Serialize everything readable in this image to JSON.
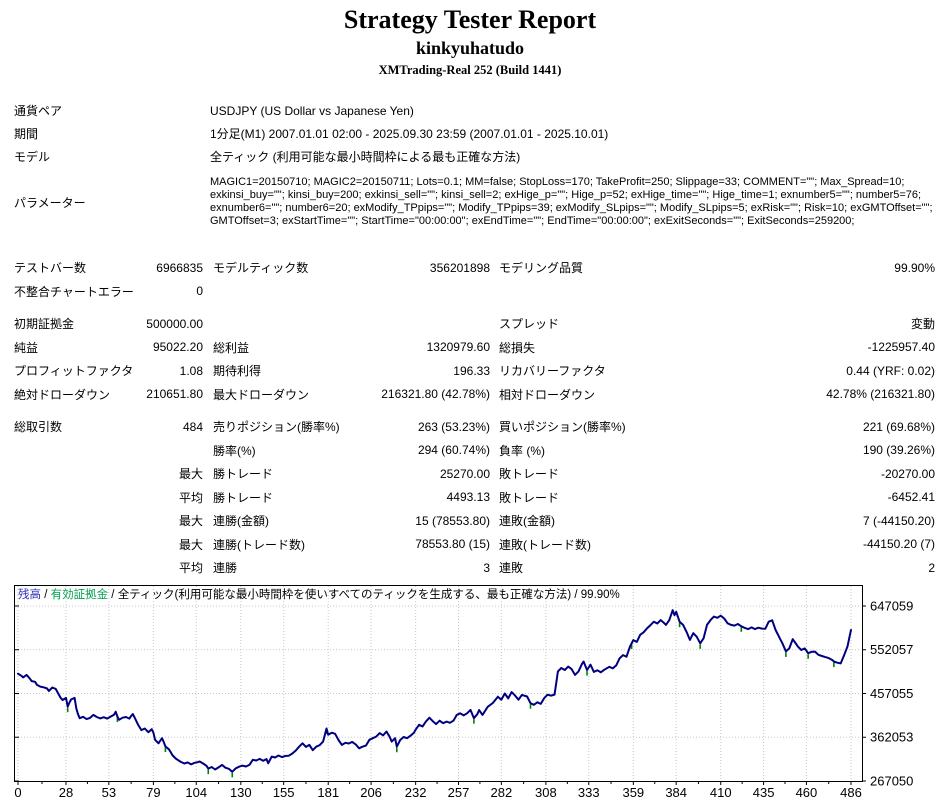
{
  "header": {
    "title": "Strategy Tester Report",
    "expert_name": "kinkyuhatudo",
    "server": "XMTrading-Real 252 (Build 1441)"
  },
  "info": {
    "rows": [
      {
        "label": "通貨ペア",
        "value": "USDJPY (US Dollar vs Japanese Yen)"
      },
      {
        "label": "期間",
        "value": "1分足(M1) 2007.01.01 02:00 - 2025.09.30 23:59 (2007.01.01 - 2025.10.01)"
      },
      {
        "label": "モデル",
        "value": "全ティック (利用可能な最小時間枠による最も正確な方法)"
      },
      {
        "label": "パラメーター",
        "value": "MAGIC1=20150710; MAGIC2=20150711; Lots=0.1; MM=false; StopLoss=170; TakeProfit=250; Slippage=33; COMMENT=\"\"; Max_Spread=10; exkinsi_buy=\"\"; kinsi_buy=200; exkinsi_sell=\"\"; kinsi_sell=2; exHige_p=\"\"; Hige_p=52; exHige_time=\"\"; Hige_time=1; exnumber5=\"\"; number5=76; exnumber6=\"\"; number6=20; exModify_TPpips=\"\"; Modify_TPpips=39; exModify_SLpips=\"\"; Modify_SLpips=5; exRisk=\"\"; Risk=10; exGMTOffset=\"\"; GMTOffset=3; exStartTime=\"\"; StartTime=\"00:00:00\"; exEndTime=\"\"; EndTime=\"00:00:00\"; exExitSeconds=\"\"; ExitSeconds=259200;"
      }
    ]
  },
  "stats": {
    "rows": [
      {
        "c1l": "テストバー数",
        "c1v": "6966835",
        "c2l": "モデルティック数",
        "c2v": "356201898",
        "c3l": "モデリング品質",
        "c3v": "99.90%",
        "gap": false
      },
      {
        "c1l": "不整合チャートエラー",
        "c1v": "0",
        "c2l": "",
        "c2v": "",
        "c3l": "",
        "c3v": "",
        "gap": false
      },
      {
        "c1l": "初期証拠金",
        "c1v": "500000.00",
        "c2l": "",
        "c2v": "",
        "c3l": "スプレッド",
        "c3v": "変動",
        "gap": true
      },
      {
        "c1l": "純益",
        "c1v": "95022.20",
        "c2l": "総利益",
        "c2v": "1320979.60",
        "c3l": "総損失",
        "c3v": "-1225957.40",
        "gap": false
      },
      {
        "c1l": "プロフィットファクタ",
        "c1v": "1.08",
        "c2l": "期待利得",
        "c2v": "196.33",
        "c3l": "リカバリーファクタ",
        "c3v": "0.44 (YRF: 0.02)",
        "gap": false
      },
      {
        "c1l": "絶対ドローダウン",
        "c1v": "210651.80",
        "c2l": "最大ドローダウン",
        "c2v": "216321.80 (42.78%)",
        "c3l": "相対ドローダウン",
        "c3v": "42.78% (216321.80)",
        "gap": false
      },
      {
        "c1l": "総取引数",
        "c1v": "484",
        "c2l": "売りポジション(勝率%)",
        "c2v": "263 (53.23%)",
        "c3l": "買いポジション(勝率%)",
        "c3v": "221 (69.68%)",
        "gap": true
      },
      {
        "c1l": "",
        "c1v": "",
        "c2l": "勝率(%)",
        "c2v": "294 (60.74%)",
        "c3l": "負率 (%)",
        "c3v": "190 (39.26%)",
        "gap": false
      },
      {
        "c1l": "",
        "c1v": "最大",
        "c2l": "勝トレード",
        "c2v": "25270.00",
        "c3l": "敗トレード",
        "c3v": "-20270.00",
        "gap": false
      },
      {
        "c1l": "",
        "c1v": "平均",
        "c2l": "勝トレード",
        "c2v": "4493.13",
        "c3l": "敗トレード",
        "c3v": "-6452.41",
        "gap": false
      },
      {
        "c1l": "",
        "c1v": "最大",
        "c2l": "連勝(金額)",
        "c2v": "15 (78553.80)",
        "c3l": "連敗(金額)",
        "c3v": "7 (-44150.20)",
        "gap": false
      },
      {
        "c1l": "",
        "c1v": "最大",
        "c2l": "連勝(トレード数)",
        "c2v": "78553.80 (15)",
        "c3l": "連敗(トレード数)",
        "c3v": "-44150.20 (7)",
        "gap": false
      },
      {
        "c1l": "",
        "c1v": "平均",
        "c2l": "連勝",
        "c2v": "3",
        "c3l": "連敗",
        "c3v": "2",
        "gap": false
      }
    ]
  },
  "chart_data": {
    "type": "line",
    "legend": {
      "balance_label": "残高",
      "equity_label": "有効証拠金",
      "separator": " / ",
      "model_quality": "全ティック(利用可能な最小時間枠を使いすべてのティックを生成する、最も正確な方法) / 99.90%"
    },
    "xlabel": "",
    "ylabel": "",
    "x_range": [
      0,
      486
    ],
    "x_ticks": [
      0,
      28,
      53,
      79,
      104,
      130,
      155,
      181,
      206,
      232,
      257,
      282,
      308,
      333,
      359,
      384,
      410,
      435,
      460,
      486
    ],
    "y_ticks": [
      647059,
      552057,
      457055,
      362053,
      267050
    ],
    "y_gridlines": [
      362053,
      457055,
      552057,
      647059
    ],
    "y_axis": {
      "bottom_value": 267050,
      "bottom_y": 196,
      "grid_top_value": 647059,
      "grid_top_y": 21
    },
    "grid": true,
    "legend_position": "top-left-inside",
    "series": [
      {
        "name": "残高 (balance)",
        "color": "#000080"
      },
      {
        "name": "有効証拠金 (equity)",
        "color": "#008000"
      }
    ],
    "balance_points": [
      [
        0,
        500000
      ],
      [
        2,
        495500
      ],
      [
        3,
        492000
      ],
      [
        5,
        497500
      ],
      [
        7,
        489000
      ],
      [
        8,
        484000
      ],
      [
        10,
        482500
      ],
      [
        11,
        476000
      ],
      [
        13,
        472000
      ],
      [
        15,
        470500
      ],
      [
        17,
        468000
      ],
      [
        18,
        462500
      ],
      [
        20,
        470000
      ],
      [
        22,
        467000
      ],
      [
        24,
        453500
      ],
      [
        25,
        447000
      ],
      [
        26,
        443000
      ],
      [
        28,
        447500
      ],
      [
        29,
        428500
      ],
      [
        30,
        437000
      ],
      [
        31,
        444000
      ],
      [
        33,
        447500
      ],
      [
        34,
        425000
      ],
      [
        35,
        412000
      ],
      [
        36,
        403500
      ],
      [
        38,
        406500
      ],
      [
        40,
        401500
      ],
      [
        42,
        404000
      ],
      [
        44,
        410500
      ],
      [
        46,
        406000
      ],
      [
        48,
        403000
      ],
      [
        50,
        405500
      ],
      [
        52,
        402500
      ],
      [
        54,
        407000
      ],
      [
        56,
        411000
      ],
      [
        57,
        417500
      ],
      [
        58,
        407000
      ],
      [
        59,
        400000
      ],
      [
        61,
        404500
      ],
      [
        63,
        406000
      ],
      [
        65,
        402500
      ],
      [
        66,
        408000
      ],
      [
        67,
        412500
      ],
      [
        68,
        405000
      ],
      [
        70,
        389500
      ],
      [
        72,
        377500
      ],
      [
        74,
        381000
      ],
      [
        76,
        373000
      ],
      [
        78,
        379500
      ],
      [
        79,
        372000
      ],
      [
        80,
        356500
      ],
      [
        82,
        349000
      ],
      [
        84,
        360000
      ],
      [
        85,
        352000
      ],
      [
        86,
        342000
      ],
      [
        88,
        336000
      ],
      [
        89,
        330500
      ],
      [
        90,
        323500
      ],
      [
        92,
        316000
      ],
      [
        94,
        311000
      ],
      [
        95,
        308500
      ],
      [
        97,
        305000
      ],
      [
        99,
        307500
      ],
      [
        101,
        303000
      ],
      [
        103,
        306500
      ],
      [
        105,
        308000
      ],
      [
        106,
        309500
      ],
      [
        108,
        305000
      ],
      [
        110,
        300000
      ],
      [
        111,
        294000
      ],
      [
        113,
        297500
      ],
      [
        115,
        292000
      ],
      [
        117,
        296500
      ],
      [
        119,
        302000
      ],
      [
        121,
        296000
      ],
      [
        123,
        293500
      ],
      [
        125,
        287000
      ],
      [
        127,
        294500
      ],
      [
        129,
        298000
      ],
      [
        131,
        300500
      ],
      [
        133,
        298500
      ],
      [
        135,
        302000
      ],
      [
        137,
        313000
      ],
      [
        139,
        311500
      ],
      [
        141,
        315000
      ],
      [
        143,
        311000
      ],
      [
        145,
        314500
      ],
      [
        146,
        305500
      ],
      [
        148,
        320000
      ],
      [
        150,
        318000
      ],
      [
        152,
        322500
      ],
      [
        154,
        319000
      ],
      [
        156,
        321500
      ],
      [
        158,
        322000
      ],
      [
        160,
        326500
      ],
      [
        162,
        333000
      ],
      [
        164,
        341500
      ],
      [
        166,
        349000
      ],
      [
        168,
        341000
      ],
      [
        170,
        345500
      ],
      [
        172,
        334000
      ],
      [
        174,
        341500
      ],
      [
        176,
        345000
      ],
      [
        178,
        352500
      ],
      [
        180,
        381000
      ],
      [
        181,
        367500
      ],
      [
        183,
        372000
      ],
      [
        185,
        369500
      ],
      [
        187,
        356000
      ],
      [
        189,
        345500
      ],
      [
        191,
        350000
      ],
      [
        193,
        348500
      ],
      [
        195,
        352000
      ],
      [
        197,
        346500
      ],
      [
        199,
        338000
      ],
      [
        201,
        341500
      ],
      [
        203,
        344000
      ],
      [
        205,
        356500
      ],
      [
        207,
        360000
      ],
      [
        209,
        363500
      ],
      [
        211,
        371000
      ],
      [
        213,
        366000
      ],
      [
        215,
        374500
      ],
      [
        217,
        362000
      ],
      [
        218,
        352500
      ],
      [
        220,
        360000
      ],
      [
        221,
        341500
      ],
      [
        223,
        356000
      ],
      [
        225,
        362500
      ],
      [
        227,
        360000
      ],
      [
        229,
        365500
      ],
      [
        231,
        372000
      ],
      [
        232,
        378500
      ],
      [
        234,
        389000
      ],
      [
        236,
        385500
      ],
      [
        238,
        396000
      ],
      [
        240,
        404500
      ],
      [
        242,
        397000
      ],
      [
        244,
        390500
      ],
      [
        246,
        398000
      ],
      [
        248,
        392500
      ],
      [
        250,
        396000
      ],
      [
        252,
        393500
      ],
      [
        254,
        398000
      ],
      [
        256,
        410500
      ],
      [
        258,
        414000
      ],
      [
        260,
        409500
      ],
      [
        262,
        414000
      ],
      [
        264,
        421500
      ],
      [
        266,
        403500
      ],
      [
        268,
        412000
      ],
      [
        269,
        421000
      ],
      [
        271,
        410500
      ],
      [
        274,
        428000
      ],
      [
        277,
        436500
      ],
      [
        280,
        450000
      ],
      [
        282,
        443500
      ],
      [
        284,
        457000
      ],
      [
        286,
        446500
      ],
      [
        288,
        460000
      ],
      [
        290,
        452500
      ],
      [
        292,
        443500
      ],
      [
        294,
        454000
      ],
      [
        297,
        450500
      ],
      [
        299,
        436000
      ],
      [
        301,
        432500
      ],
      [
        303,
        438000
      ],
      [
        305,
        434500
      ],
      [
        307,
        447000
      ],
      [
        309,
        454500
      ],
      [
        311,
        452500
      ],
      [
        313,
        454500
      ],
      [
        314,
        479000
      ],
      [
        315,
        505000
      ],
      [
        317,
        512500
      ],
      [
        319,
        508000
      ],
      [
        321,
        515500
      ],
      [
        323,
        510000
      ],
      [
        325,
        497500
      ],
      [
        327,
        505000
      ],
      [
        329,
        521000
      ],
      [
        330,
        526500
      ],
      [
        332,
        508000
      ],
      [
        334,
        519500
      ],
      [
        336,
        504000
      ],
      [
        338,
        507500
      ],
      [
        340,
        503000
      ],
      [
        342,
        508500
      ],
      [
        345,
        515000
      ],
      [
        347,
        511500
      ],
      [
        349,
        518000
      ],
      [
        351,
        533500
      ],
      [
        353,
        540500
      ],
      [
        355,
        537000
      ],
      [
        357,
        558500
      ],
      [
        359,
        573000
      ],
      [
        361,
        569000
      ],
      [
        363,
        584500
      ],
      [
        365,
        590000
      ],
      [
        367,
        598500
      ],
      [
        369,
        605500
      ],
      [
        371,
        613000
      ],
      [
        373,
        609000
      ],
      [
        375,
        616500
      ],
      [
        377,
        610000
      ],
      [
        378,
        606000
      ],
      [
        380,
        616500
      ],
      [
        382,
        638000
      ],
      [
        383,
        627000
      ],
      [
        384,
        634500
      ],
      [
        386,
        613000
      ],
      [
        388,
        606500
      ],
      [
        390,
        591000
      ],
      [
        392,
        573500
      ],
      [
        394,
        588000
      ],
      [
        396,
        580500
      ],
      [
        398,
        566000
      ],
      [
        400,
        577000
      ],
      [
        402,
        606000
      ],
      [
        404,
        616500
      ],
      [
        406,
        624000
      ],
      [
        408,
        621500
      ],
      [
        410,
        626000
      ],
      [
        412,
        620000
      ],
      [
        414,
        609500
      ],
      [
        416,
        606000
      ],
      [
        418,
        604500
      ],
      [
        420,
        608000
      ],
      [
        422,
        603000
      ],
      [
        424,
        599500
      ],
      [
        426,
        597000
      ],
      [
        428,
        600500
      ],
      [
        430,
        597000
      ],
      [
        432,
        600000
      ],
      [
        434,
        598000
      ],
      [
        436,
        597500
      ],
      [
        438,
        613000
      ],
      [
        440,
        616000
      ],
      [
        442,
        595000
      ],
      [
        444,
        580500
      ],
      [
        446,
        566000
      ],
      [
        448,
        548500
      ],
      [
        450,
        555000
      ],
      [
        452,
        575000
      ],
      [
        453,
        570000
      ],
      [
        455,
        559000
      ],
      [
        457,
        551500
      ],
      [
        459,
        555000
      ],
      [
        461,
        544500
      ],
      [
        463,
        547500
      ],
      [
        465,
        548000
      ],
      [
        467,
        541000
      ],
      [
        469,
        538500
      ],
      [
        471,
        536000
      ],
      [
        473,
        534000
      ],
      [
        475,
        530000
      ],
      [
        476,
        526500
      ],
      [
        478,
        524000
      ],
      [
        480,
        522500
      ],
      [
        482,
        540000
      ],
      [
        484,
        560000
      ],
      [
        485,
        578000
      ],
      [
        486,
        595022
      ]
    ],
    "equity_tick_xs": [
      29,
      58,
      86,
      111,
      125,
      180,
      221,
      266,
      299,
      332,
      358,
      386,
      398,
      422,
      448,
      461,
      476
    ],
    "equity_tick_drop": 12000,
    "colors": {
      "balance_line": "#000080",
      "equity_line": "#008000",
      "grid": "#c9c9c9",
      "border": "#000000",
      "legend_balance": "#2e2eb8",
      "legend_equity": "#00a050"
    }
  }
}
